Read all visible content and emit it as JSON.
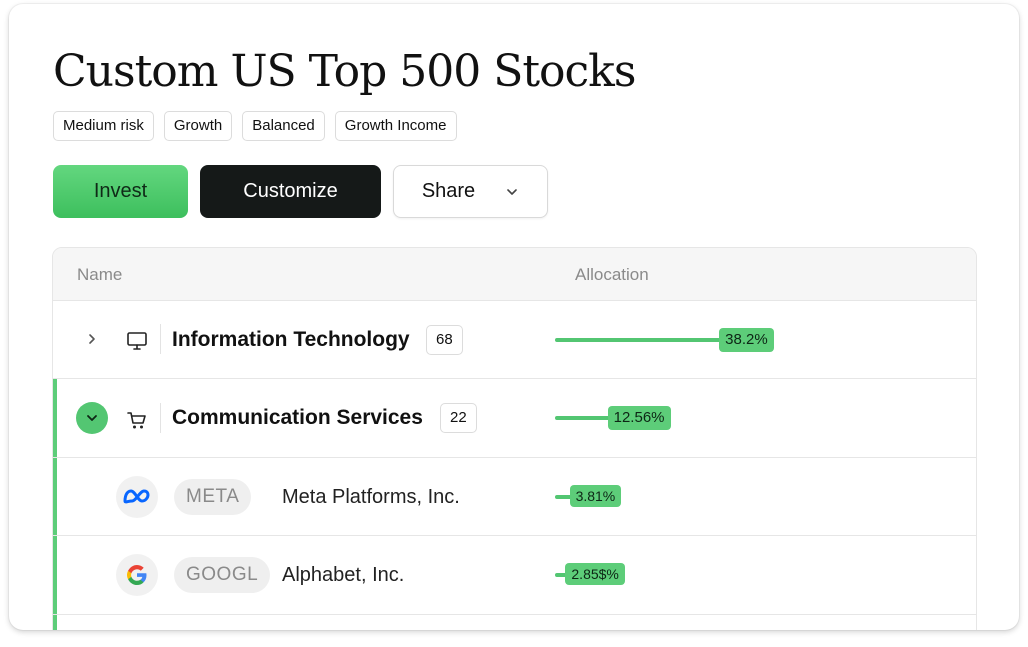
{
  "title": "Custom US Top 500 Stocks",
  "tags": [
    "Medium risk",
    "Growth",
    "Balanced",
    "Growth Income"
  ],
  "actions": {
    "invest": "Invest",
    "customize": "Customize",
    "share": "Share"
  },
  "colors": {
    "accent": "#53c672",
    "dark": "#151918"
  },
  "table": {
    "columns": {
      "name": "Name",
      "allocation": "Allocation"
    },
    "sectors": [
      {
        "name": "Information Technology",
        "count": "68",
        "allocation_label": "38.2%",
        "allocation_value": 38.2,
        "icon": "monitor-icon",
        "expanded": false
      },
      {
        "name": "Communication Services",
        "count": "22",
        "allocation_label": "12.56%",
        "allocation_value": 12.56,
        "icon": "cart-icon",
        "expanded": true
      }
    ],
    "holdings": [
      {
        "ticker": "META",
        "company": "Meta Platforms, Inc.",
        "allocation_label": "3.81%",
        "allocation_value": 3.81,
        "icon": "meta-logo-icon"
      },
      {
        "ticker": "GOOGL",
        "company": "Alphabet, Inc.",
        "allocation_label": "2.85$%",
        "allocation_value": 2.85,
        "icon": "google-logo-icon"
      }
    ]
  }
}
